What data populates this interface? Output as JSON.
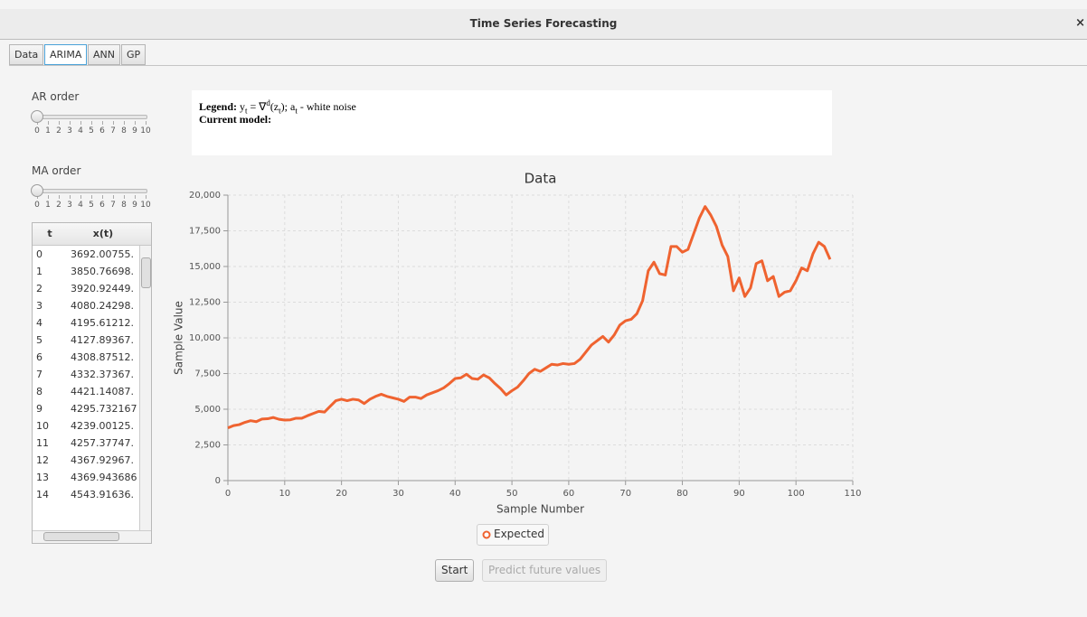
{
  "window": {
    "title": "Time Series Forecasting",
    "close": "×"
  },
  "tabs": {
    "items": [
      "Data",
      "ARIMA",
      "ANN",
      "GP"
    ],
    "selected": 1
  },
  "ar_order": {
    "label": "AR order",
    "value": 0,
    "ticks": [
      0,
      1,
      2,
      3,
      4,
      5,
      6,
      7,
      8,
      9,
      10
    ]
  },
  "ma_order": {
    "label": "MA order",
    "value": 0,
    "ticks": [
      0,
      1,
      2,
      3,
      4,
      5,
      6,
      7,
      8,
      9,
      10
    ]
  },
  "table": {
    "headers": [
      "t",
      "x(t)"
    ],
    "rows": [
      [
        "0",
        "3692.00755."
      ],
      [
        "1",
        "3850.76698."
      ],
      [
        "2",
        "3920.92449."
      ],
      [
        "3",
        "4080.24298."
      ],
      [
        "4",
        "4195.61212."
      ],
      [
        "5",
        "4127.89367."
      ],
      [
        "6",
        "4308.87512."
      ],
      [
        "7",
        "4332.37367."
      ],
      [
        "8",
        "4421.14087."
      ],
      [
        "9",
        "4295.732167"
      ],
      [
        "10",
        "4239.00125."
      ],
      [
        "11",
        "4257.37747."
      ],
      [
        "12",
        "4367.92967."
      ],
      [
        "13",
        "4369.943686"
      ],
      [
        "14",
        "4543.91636."
      ]
    ]
  },
  "model_legend": {
    "legend_label": "Legend:",
    "formula": [
      "y",
      "t",
      " = ∇",
      "d",
      "(z",
      "t",
      "); a",
      "t",
      " - white noise"
    ],
    "current_model_label": "Current model:"
  },
  "buttons": {
    "start": "Start",
    "predict": "Predict future values"
  },
  "chart_data": {
    "type": "line",
    "title": "Data",
    "xlabel": "Sample Number",
    "ylabel": "Sample Value",
    "xlim": [
      0,
      110
    ],
    "xticks": [
      0,
      10,
      20,
      30,
      40,
      50,
      60,
      70,
      80,
      90,
      100,
      110
    ],
    "ylim": [
      0,
      20000
    ],
    "yticks": [
      0,
      {
        "value": 2500,
        "label": "2,500"
      },
      {
        "value": 5000,
        "label": "5,000"
      },
      {
        "value": 7500,
        "label": "7,500"
      },
      {
        "value": 10000,
        "label": "10,000"
      },
      {
        "value": 12500,
        "label": "12,500"
      },
      {
        "value": 15000,
        "label": "15,000"
      },
      {
        "value": 17500,
        "label": "17,500"
      },
      {
        "value": 20000,
        "label": "20,000"
      }
    ],
    "grid": true,
    "legend": "bottom",
    "x": [
      0,
      1,
      2,
      3,
      4,
      5,
      6,
      7,
      8,
      9,
      10,
      11,
      12,
      13,
      14,
      15,
      16,
      17,
      18,
      19,
      20,
      21,
      22,
      23,
      24,
      25,
      26,
      27,
      28,
      29,
      30,
      31,
      32,
      33,
      34,
      35,
      36,
      37,
      38,
      39,
      40,
      41,
      42,
      43,
      44,
      45,
      46,
      47,
      48,
      49,
      50,
      51,
      52,
      53,
      54,
      55,
      56,
      57,
      58,
      59,
      60,
      61,
      62,
      63,
      64,
      65,
      66,
      67,
      68,
      69,
      70,
      71,
      72,
      73,
      74,
      75,
      76,
      77,
      78,
      79,
      80,
      81,
      82,
      83,
      84,
      85,
      86,
      87,
      88,
      89,
      90,
      91,
      92,
      93,
      94,
      95,
      96,
      97,
      98,
      99,
      100,
      101,
      102,
      103,
      104,
      105,
      106
    ],
    "series": [
      {
        "name": "Expected",
        "color": "#ef6330",
        "values": [
          3692,
          3851,
          3921,
          4080,
          4196,
          4128,
          4309,
          4332,
          4421,
          4296,
          4239,
          4257,
          4368,
          4370,
          4544,
          4700,
          4850,
          4800,
          5200,
          5600,
          5700,
          5600,
          5700,
          5650,
          5400,
          5700,
          5900,
          6050,
          5900,
          5800,
          5700,
          5550,
          5850,
          5850,
          5750,
          6000,
          6150,
          6300,
          6500,
          6800,
          7150,
          7200,
          7450,
          7150,
          7100,
          7400,
          7200,
          6800,
          6450,
          6000,
          6300,
          6550,
          7000,
          7500,
          7800,
          7650,
          7900,
          8150,
          8100,
          8200,
          8150,
          8200,
          8500,
          9000,
          9500,
          9800,
          10100,
          9700,
          10200,
          10900,
          11200,
          11300,
          11700,
          12600,
          14700,
          15300,
          14500,
          14400,
          16400,
          16400,
          16000,
          16200,
          17300,
          18400,
          19200,
          18600,
          17800,
          16500,
          15700,
          13300,
          14200,
          12900,
          13500,
          15200,
          15400,
          14000,
          14300,
          12900,
          13200,
          13300,
          14000,
          14900,
          14700,
          15900,
          16700,
          16400,
          15500
        ]
      }
    ]
  }
}
